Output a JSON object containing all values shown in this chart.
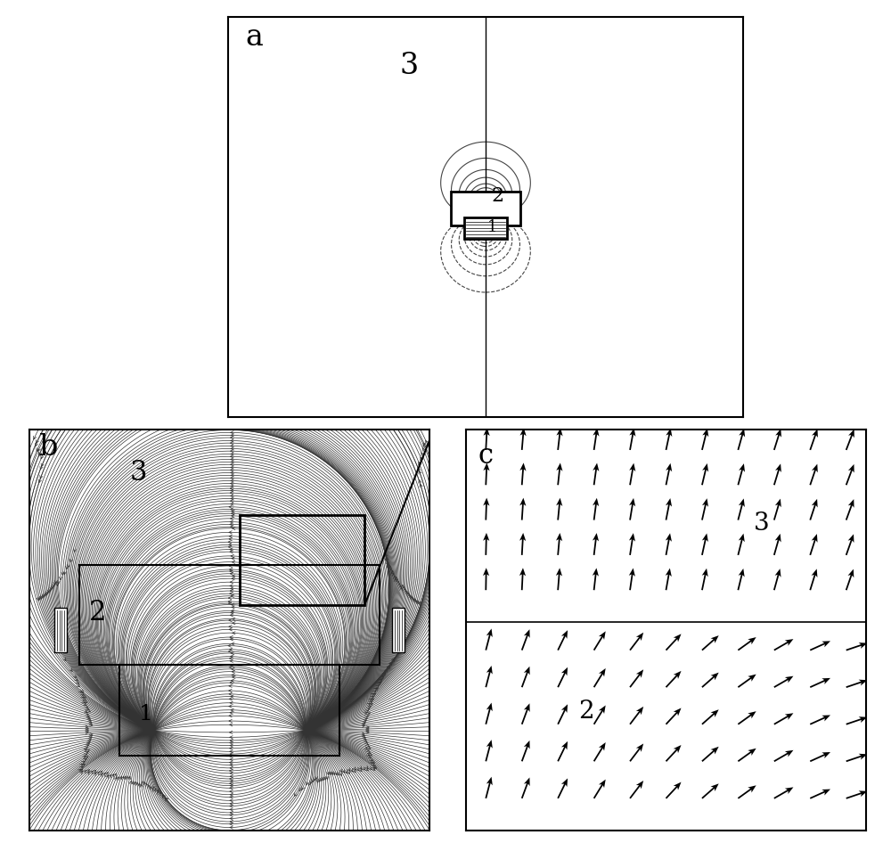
{
  "fig_width": 10.0,
  "fig_height": 9.46,
  "bg_color": "#ffffff",
  "panel_a": {
    "label": "a",
    "label3": "3",
    "label2": "2",
    "label1": "1"
  },
  "panel_b": {
    "label": "b",
    "label3": "3",
    "label2": "2",
    "label1": "1"
  },
  "panel_c": {
    "label": "c",
    "label3": "3",
    "label2": "2"
  }
}
